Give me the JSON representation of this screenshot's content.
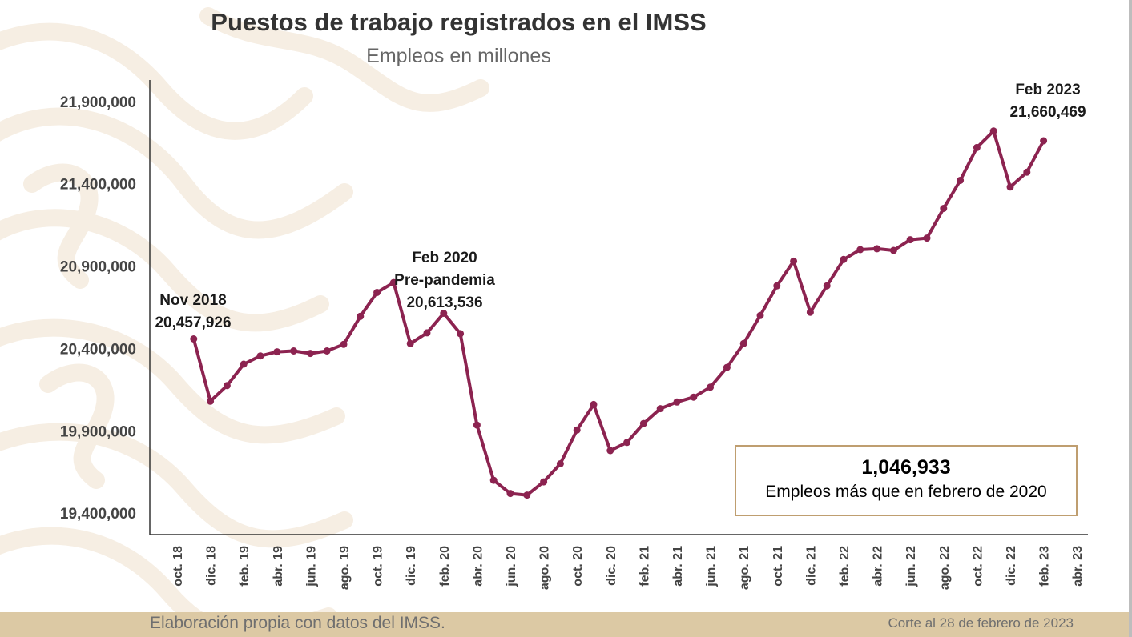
{
  "header": {
    "title": "Puestos de trabajo registrados en el IMSS",
    "subtitle": "Empleos en millones"
  },
  "annotations": {
    "nov2018": {
      "line1": "Nov 2018",
      "line2": "20,457,926"
    },
    "feb2020": {
      "line1": "Feb 2020",
      "line2": "Pre-pandemia",
      "line3": "20,613,536"
    },
    "feb2023": {
      "line1": "Feb 2023",
      "line2": "21,660,469"
    }
  },
  "infobox": {
    "value": "1,046,933",
    "text": "Empleos más que en febrero de 2020"
  },
  "footer": {
    "source": "Elaboración propia con datos del IMSS.",
    "cutoff": "Corte al 28 de febrero de 2023"
  },
  "colors": {
    "line": "#8c2350",
    "axis": "#333333",
    "box_border": "#bf9e70",
    "footer_bg": "#dcc9a4"
  },
  "chart_data": {
    "type": "line",
    "title": "Puestos de trabajo registrados en el IMSS",
    "subtitle": "Empleos en millones",
    "xlabel": "",
    "ylabel": "",
    "ylim": [
      19270000,
      22030000
    ],
    "y_ticks": [
      19400000,
      19900000,
      20400000,
      20900000,
      21400000,
      21900000
    ],
    "y_tick_labels": [
      "19,400,000",
      "19,900,000",
      "20,400,000",
      "20,900,000",
      "21,400,000",
      "21,900,000"
    ],
    "x_tick_labels": [
      "oct. 18",
      "dic. 18",
      "feb. 19",
      "abr. 19",
      "jun. 19",
      "ago. 19",
      "oct. 19",
      "dic. 19",
      "feb. 20",
      "abr. 20",
      "jun. 20",
      "ago. 20",
      "oct. 20",
      "dic. 20",
      "feb. 21",
      "abr. 21",
      "jun. 21",
      "ago. 21",
      "oct. 21",
      "dic. 21",
      "feb. 22",
      "abr. 22",
      "jun. 22",
      "ago. 22",
      "oct. 22",
      "dic. 22",
      "feb. 23",
      "abr. 23"
    ],
    "grid": false,
    "series": [
      {
        "start": "nov. 18",
        "values": [
          20457926,
          20080000,
          20175000,
          20305000,
          20355000,
          20380000,
          20385000,
          20370000,
          20385000,
          20425000,
          20595000,
          20740000,
          20800000,
          20430000,
          20495000,
          20613536,
          20490000,
          19935000,
          19600000,
          19520000,
          19510000,
          19590000,
          19700000,
          19905000,
          20060000,
          19780000,
          19830000,
          19945000,
          20035000,
          20075000,
          20105000,
          20165000,
          20285000,
          20430000,
          20600000,
          20780000,
          20930000,
          20620000,
          20780000,
          20940000,
          21000000,
          21005000,
          20995000,
          21060000,
          21070000,
          21250000,
          21420000,
          21620000,
          21720000,
          21380000,
          21470000,
          21660469
        ]
      }
    ]
  }
}
